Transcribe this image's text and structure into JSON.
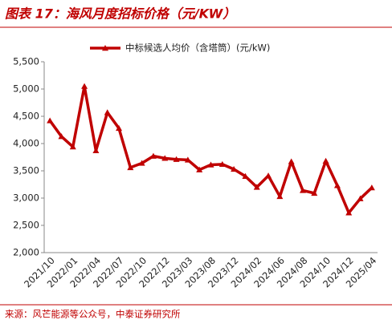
{
  "chart_data": {
    "type": "line",
    "title": "图表 17：海风月度招标价格（元/KW）",
    "source": "来源：风芒能源等公众号，中泰证券研究所",
    "categories": [
      "2021/10",
      null,
      "2022/01",
      null,
      "2022/04",
      null,
      "2022/07",
      null,
      "2022/10",
      null,
      "2022/12",
      null,
      "2023/03",
      null,
      "2023/08",
      null,
      "2023/12",
      null,
      "2024/02",
      null,
      "2024/06",
      null,
      "2024/08",
      null,
      "2024/10",
      null,
      "2024/12",
      null,
      "2025/04"
    ],
    "series": [
      {
        "name": "中标候选人均价（含塔筒）(元/kW)",
        "color": "#c00000",
        "values": [
          4420,
          4130,
          3940,
          5050,
          3870,
          4570,
          4280,
          3560,
          3640,
          3770,
          3730,
          3710,
          3700,
          3520,
          3610,
          3620,
          3530,
          3400,
          3200,
          3410,
          3030,
          3670,
          3140,
          3090,
          3680,
          3230,
          2730,
          2990,
          3190
        ]
      }
    ],
    "ylim": [
      2000,
      5500
    ],
    "yticks": [
      {
        "value": 2000,
        "label": "2,000"
      },
      {
        "value": 2500,
        "label": "2,500"
      },
      {
        "value": 3000,
        "label": "3,000"
      },
      {
        "value": 3500,
        "label": "3,500"
      },
      {
        "value": 4000,
        "label": "4,000"
      },
      {
        "value": 4500,
        "label": "4,500"
      },
      {
        "value": 5000,
        "label": "5,000"
      },
      {
        "value": 5500,
        "label": "5,500"
      }
    ],
    "grid": false
  }
}
